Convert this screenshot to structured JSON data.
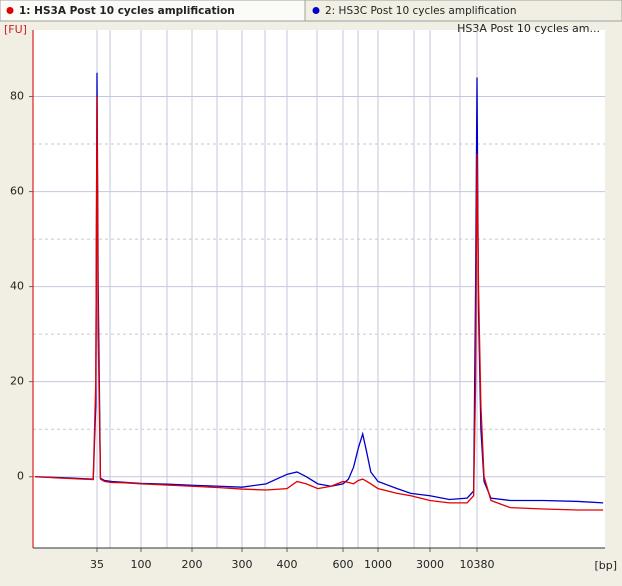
{
  "chart_data": {
    "type": "line",
    "plot_label": "HS3A Post 10 cycles am...",
    "y_label": "[FU]",
    "x_label": "[bp]",
    "x": [
      8,
      15,
      25,
      32,
      34,
      35,
      36,
      38,
      42,
      50,
      70,
      100,
      150,
      200,
      250,
      300,
      350,
      400,
      430,
      460,
      500,
      550,
      600,
      650,
      700,
      750,
      800,
      850,
      900,
      1000,
      1500,
      2000,
      3000,
      5000,
      8000,
      9500,
      10000,
      10380,
      10800,
      11500,
      12500,
      15000,
      25000,
      60000,
      150000,
      290000
    ],
    "series": [
      {
        "name": "1: HS3A Post 10 cycles amplification",
        "color": "#e00000",
        "values": [
          0,
          -0.3,
          -0.5,
          -0.6,
          20,
          80,
          30,
          -0.5,
          -1,
          -1.2,
          -1.3,
          -1.5,
          -1.8,
          -2,
          -2.3,
          -2.6,
          -2.8,
          -2.5,
          -1,
          -1.5,
          -2.5,
          -2,
          -1,
          -1.2,
          -1.5,
          -0.8,
          -0.5,
          -1,
          -1.5,
          -2.5,
          -3.5,
          -4,
          -5,
          -5.5,
          -5.5,
          -4,
          20,
          68,
          40,
          15,
          0,
          -5,
          -6.5,
          -6.8,
          -7,
          -7
        ]
      },
      {
        "name": "2: HS3C Post 10 cycles amplification",
        "color": "#0000cc",
        "values": [
          0,
          -0.2,
          -0.4,
          -0.5,
          15,
          85,
          40,
          -0.3,
          -0.8,
          -1,
          -1.2,
          -1.4,
          -1.6,
          -1.8,
          -2,
          -2.2,
          -1.5,
          0.5,
          1,
          0,
          -1.5,
          -2,
          -1.5,
          -0.5,
          2,
          6,
          9,
          5,
          1,
          -1,
          -2.5,
          -3.5,
          -4,
          -4.8,
          -4.5,
          -3,
          40,
          84,
          35,
          10,
          -1,
          -4.5,
          -5,
          -5,
          -5.2,
          -5.5
        ]
      }
    ],
    "xticks": [
      35,
      100,
      200,
      300,
      400,
      600,
      1000,
      3000,
      10380
    ],
    "ylim": [
      -15,
      94
    ],
    "yticks": [
      0,
      20,
      40,
      60,
      80
    ],
    "grid": true
  }
}
